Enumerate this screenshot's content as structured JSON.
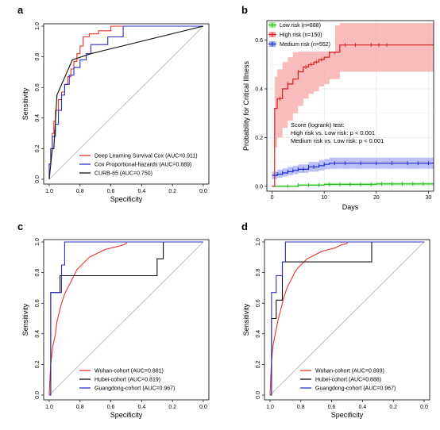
{
  "chart_data": [
    {
      "panel": "a",
      "type": "line",
      "xlabel": "Specificity",
      "ylabel": "Sensitivity",
      "x_reversed": true,
      "xlim": [
        1.0,
        0.0
      ],
      "ylim": [
        0.0,
        1.0
      ],
      "x_ticks": [
        "1.0",
        "0.8",
        "0.6",
        "0.4",
        "0.2",
        "0.0"
      ],
      "y_ticks": [
        "0.0",
        "0.2",
        "0.4",
        "0.6",
        "0.8",
        "1.0"
      ],
      "reference_diagonal": true,
      "legend_position": "bottom-right",
      "series": [
        {
          "name": "Deep Learning Survival Cox (AUC=0.911)",
          "color": "#e8332a",
          "x": [
            1.0,
            1.0,
            0.99,
            0.99,
            0.98,
            0.98,
            0.97,
            0.97,
            0.96,
            0.96,
            0.94,
            0.94,
            0.92,
            0.92,
            0.9,
            0.9,
            0.88,
            0.88,
            0.86,
            0.86,
            0.84,
            0.84,
            0.82,
            0.82,
            0.8,
            0.8,
            0.78,
            0.78,
            0.74,
            0.74,
            0.68,
            0.68,
            0.6,
            0.6,
            0.0
          ],
          "y": [
            0.0,
            0.1,
            0.1,
            0.2,
            0.2,
            0.3,
            0.3,
            0.38,
            0.38,
            0.45,
            0.45,
            0.52,
            0.52,
            0.57,
            0.57,
            0.62,
            0.62,
            0.67,
            0.67,
            0.72,
            0.72,
            0.77,
            0.77,
            0.82,
            0.82,
            0.87,
            0.87,
            0.93,
            0.93,
            0.95,
            0.95,
            0.97,
            0.97,
            1.0,
            1.0
          ]
        },
        {
          "name": "Cox Proportional-hazards (AUC=0.889)",
          "color": "#2b2fc8",
          "x": [
            1.0,
            1.0,
            0.99,
            0.99,
            0.98,
            0.98,
            0.96,
            0.96,
            0.94,
            0.94,
            0.92,
            0.92,
            0.9,
            0.9,
            0.87,
            0.87,
            0.84,
            0.84,
            0.8,
            0.8,
            0.76,
            0.76,
            0.73,
            0.73,
            0.62,
            0.62,
            0.52,
            0.52,
            0.0
          ],
          "y": [
            0.0,
            0.1,
            0.1,
            0.2,
            0.2,
            0.28,
            0.28,
            0.36,
            0.36,
            0.45,
            0.45,
            0.55,
            0.55,
            0.62,
            0.62,
            0.68,
            0.68,
            0.73,
            0.73,
            0.78,
            0.78,
            0.82,
            0.82,
            0.88,
            0.88,
            0.93,
            0.93,
            1.0,
            1.0
          ]
        },
        {
          "name": "CURB-65 (AUC=0.750)",
          "color": "#111111",
          "x": [
            1.0,
            0.98,
            0.97,
            0.95,
            0.85,
            0.73,
            0.0
          ],
          "y": [
            0.0,
            0.2,
            0.2,
            0.55,
            0.78,
            0.82,
            1.0
          ]
        }
      ]
    },
    {
      "panel": "b",
      "type": "line",
      "xlabel": "Days",
      "ylabel": "Probability for Critical Illness",
      "xlim": [
        -1,
        31
      ],
      "ylim": [
        -0.02,
        0.68
      ],
      "x_ticks": [
        "0",
        "10",
        "20",
        "30"
      ],
      "x_tick_values": [
        0,
        10,
        20,
        30
      ],
      "y_ticks": [
        "0.0",
        "0.2",
        "0.4",
        "0.6"
      ],
      "y_tick_values": [
        0,
        0.2,
        0.4,
        0.6
      ],
      "grid": true,
      "legend_position": "top-left",
      "annotation": [
        "Score (logrank) test:",
        "High risk vs. Low risk: p < 0.001",
        "Medium risk vs. Low risk: p < 0.001"
      ],
      "series": [
        {
          "name": "Low risk (n=888)",
          "color": "#22bb22",
          "band_color": "#a8f0a0",
          "x": [
            0,
            5,
            10,
            20,
            31
          ],
          "y": [
            0.0,
            0.005,
            0.008,
            0.01,
            0.01
          ],
          "lower": [
            0.0,
            0.002,
            0.003,
            0.004,
            0.004
          ],
          "upper": [
            0.004,
            0.01,
            0.014,
            0.016,
            0.016
          ],
          "censor_x": [
            3,
            5,
            7,
            9,
            11,
            13,
            15,
            17,
            19,
            21,
            23,
            25,
            27,
            29
          ]
        },
        {
          "name": "High risk (n=150)",
          "color": "#d42020",
          "band_color": "#f5a0a0",
          "x": [
            0,
            0.5,
            1,
            2,
            3,
            4,
            5,
            6,
            7,
            8,
            9,
            10,
            11,
            13,
            31
          ],
          "y": [
            0.0,
            0.32,
            0.36,
            0.4,
            0.42,
            0.44,
            0.47,
            0.49,
            0.5,
            0.51,
            0.52,
            0.53,
            0.55,
            0.58,
            0.58
          ],
          "lower": [
            0.0,
            0.16,
            0.2,
            0.24,
            0.27,
            0.3,
            0.33,
            0.36,
            0.38,
            0.39,
            0.41,
            0.42,
            0.44,
            0.47,
            0.47
          ],
          "upper": [
            0.0,
            0.45,
            0.48,
            0.51,
            0.53,
            0.55,
            0.58,
            0.6,
            0.61,
            0.62,
            0.63,
            0.64,
            0.66,
            0.67,
            0.67
          ],
          "censor_x": [
            1.5,
            3,
            5,
            6.5,
            7.5,
            8.5,
            9.5,
            11,
            12,
            14,
            16,
            19,
            20.5,
            22
          ]
        },
        {
          "name": "Medium risk (n=552)",
          "color": "#1a2bd0",
          "band_color": "#a0a8f5",
          "x": [
            0,
            1,
            2,
            3,
            4,
            5,
            7,
            9,
            10,
            11,
            31
          ],
          "y": [
            0.045,
            0.05,
            0.055,
            0.06,
            0.065,
            0.07,
            0.08,
            0.085,
            0.09,
            0.095,
            0.095
          ],
          "lower": [
            0.03,
            0.035,
            0.04,
            0.045,
            0.05,
            0.055,
            0.06,
            0.065,
            0.07,
            0.072,
            0.072
          ],
          "upper": [
            0.06,
            0.068,
            0.074,
            0.08,
            0.085,
            0.09,
            0.1,
            0.108,
            0.112,
            0.118,
            0.118
          ],
          "censor_x": [
            1,
            2,
            3,
            4,
            5,
            6,
            7,
            8,
            9,
            10,
            12,
            14,
            17,
            20,
            23,
            26,
            28,
            30
          ]
        }
      ]
    },
    {
      "panel": "c",
      "type": "line",
      "xlabel": "Specificity",
      "ylabel": "Sensitivity",
      "x_reversed": true,
      "xlim": [
        1.0,
        0.0
      ],
      "ylim": [
        0.0,
        1.0
      ],
      "x_ticks": [
        "1.0",
        "0.8",
        "0.6",
        "0.4",
        "0.2",
        "0.0"
      ],
      "y_ticks": [
        "0.0",
        "0.2",
        "0.4",
        "0.6",
        "0.8",
        "1.0"
      ],
      "reference_diagonal": true,
      "legend_position": "bottom-right",
      "series": [
        {
          "name": "Wuhan-cohort (AUC=0.881)",
          "color": "#e8332a",
          "x": [
            1.0,
            0.995,
            0.99,
            0.985,
            0.98,
            0.97,
            0.96,
            0.955,
            0.95,
            0.94,
            0.93,
            0.92,
            0.91,
            0.9,
            0.89,
            0.88,
            0.87,
            0.86,
            0.85,
            0.84,
            0.83,
            0.82,
            0.8,
            0.78,
            0.76,
            0.74,
            0.72,
            0.7,
            0.68,
            0.66,
            0.64,
            0.6,
            0.56,
            0.52,
            0.5,
            0.5,
            0.0
          ],
          "y": [
            0.0,
            0.12,
            0.2,
            0.25,
            0.3,
            0.35,
            0.4,
            0.44,
            0.48,
            0.52,
            0.56,
            0.6,
            0.63,
            0.66,
            0.68,
            0.7,
            0.72,
            0.74,
            0.76,
            0.78,
            0.8,
            0.82,
            0.84,
            0.86,
            0.88,
            0.9,
            0.91,
            0.92,
            0.93,
            0.94,
            0.95,
            0.96,
            0.97,
            0.98,
            0.99,
            1.0,
            1.0
          ]
        },
        {
          "name": "Hubei-cohort (AUC=0.819)",
          "color": "#111111",
          "x": [
            1.0,
            0.99,
            0.99,
            0.93,
            0.93,
            0.9,
            0.9,
            0.3,
            0.3,
            0.26,
            0.26,
            0.0
          ],
          "y": [
            0.0,
            0.0,
            0.67,
            0.67,
            0.78,
            0.78,
            0.78,
            0.78,
            0.89,
            0.89,
            1.0,
            1.0
          ]
        },
        {
          "name": "Guangdong-cohort (AUC=0.967)",
          "color": "#2b2fc8",
          "x": [
            1.0,
            0.99,
            0.99,
            0.96,
            0.96,
            0.92,
            0.92,
            0.9,
            0.9,
            0.0
          ],
          "y": [
            0.0,
            0.0,
            0.67,
            0.67,
            0.67,
            0.67,
            0.85,
            0.85,
            1.0,
            1.0
          ]
        }
      ]
    },
    {
      "panel": "d",
      "type": "line",
      "xlabel": "Specificity",
      "ylabel": "Sensitivity",
      "x_reversed": true,
      "xlim": [
        1.0,
        0.0
      ],
      "ylim": [
        0.0,
        1.0
      ],
      "x_ticks": [
        "1.0",
        "0.8",
        "0.6",
        "0.4",
        "0.2",
        "0.0"
      ],
      "y_ticks": [
        "0.0",
        "0.2",
        "0.4",
        "0.6",
        "0.8",
        "1.0"
      ],
      "reference_diagonal": true,
      "legend_position": "bottom-right",
      "series": [
        {
          "name": "Wuhan-cohort (AUC=0.893)",
          "color": "#e8332a",
          "x": [
            1.0,
            0.995,
            0.99,
            0.985,
            0.98,
            0.97,
            0.96,
            0.95,
            0.94,
            0.93,
            0.92,
            0.91,
            0.9,
            0.89,
            0.88,
            0.87,
            0.86,
            0.85,
            0.84,
            0.82,
            0.8,
            0.78,
            0.76,
            0.74,
            0.72,
            0.7,
            0.68,
            0.66,
            0.62,
            0.58,
            0.54,
            0.5,
            0.5,
            0.0
          ],
          "y": [
            0.0,
            0.12,
            0.22,
            0.28,
            0.33,
            0.38,
            0.43,
            0.48,
            0.52,
            0.56,
            0.6,
            0.64,
            0.67,
            0.7,
            0.72,
            0.74,
            0.76,
            0.78,
            0.8,
            0.83,
            0.85,
            0.87,
            0.89,
            0.9,
            0.91,
            0.92,
            0.93,
            0.94,
            0.95,
            0.96,
            0.98,
            0.99,
            1.0,
            1.0
          ]
        },
        {
          "name": "Hubei-cohort (AUC=0.888)",
          "color": "#111111",
          "x": [
            1.0,
            0.99,
            0.99,
            0.96,
            0.96,
            0.92,
            0.92,
            0.34,
            0.34,
            0.0
          ],
          "y": [
            0.0,
            0.0,
            0.5,
            0.5,
            0.62,
            0.62,
            0.87,
            0.87,
            1.0,
            1.0
          ]
        },
        {
          "name": "Guangdong-cohort (AUC=0.967)",
          "color": "#2b2fc8",
          "x": [
            1.0,
            0.99,
            0.99,
            0.96,
            0.96,
            0.92,
            0.92,
            0.9,
            0.9,
            0.0
          ],
          "y": [
            0.0,
            0.0,
            0.67,
            0.67,
            0.78,
            0.78,
            0.87,
            0.87,
            1.0,
            1.0
          ]
        }
      ]
    }
  ]
}
